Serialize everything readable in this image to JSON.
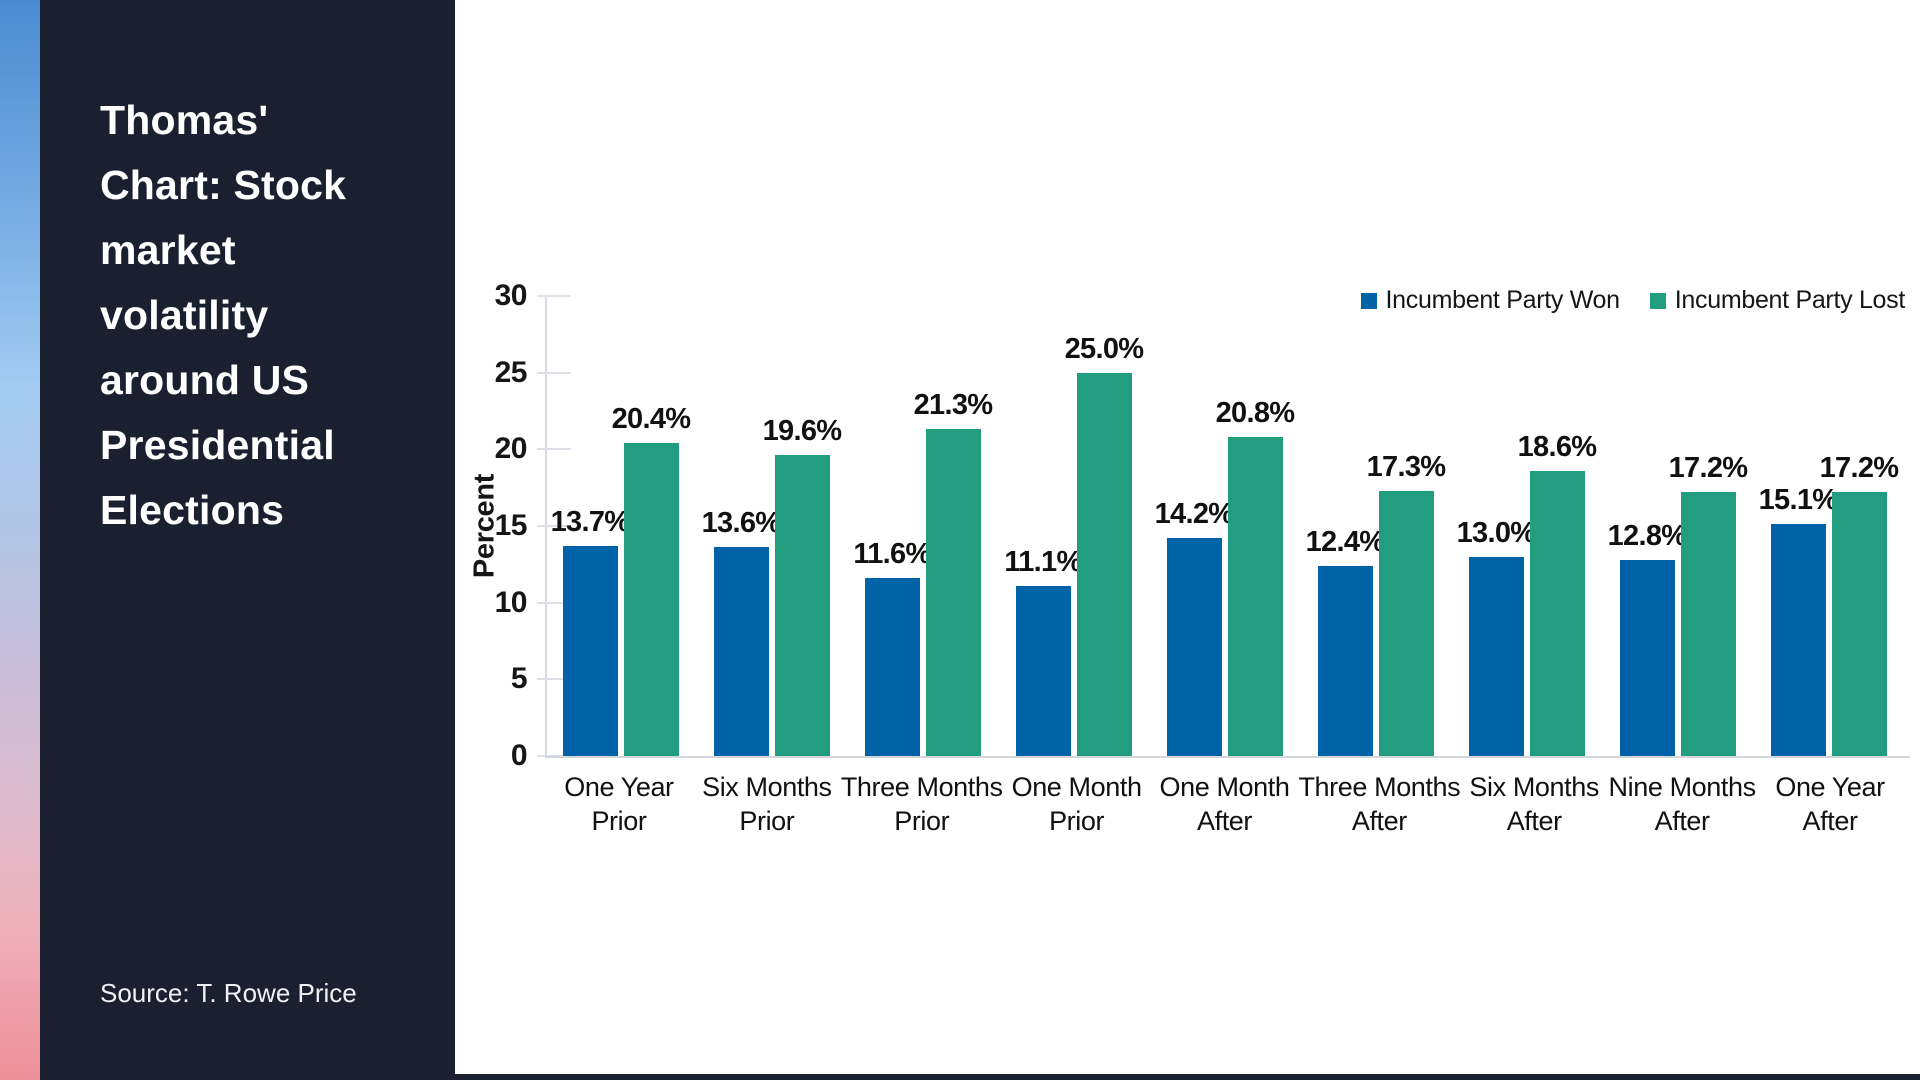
{
  "sidebar": {
    "title": "Thomas' Chart: Stock market volatility around US Presidential Elections",
    "source": "Source: T. Rowe Price"
  },
  "colors": {
    "sidebar_background": "#1a202f",
    "panel_background": "#ffffff",
    "won_blue": "#0062a7",
    "lost_green": "#229d80",
    "axis_gray": "#d6dbe1",
    "gradient_strip_top": "#4a8bd0",
    "gradient_strip_middle": "#a3cbf2",
    "gradient_strip_bottom": "#ee8f99"
  },
  "chart_data": {
    "type": "bar",
    "title": "",
    "xlabel": "",
    "ylabel": "Percent",
    "ylim": [
      0,
      30
    ],
    "yticks": [
      0,
      5,
      10,
      15,
      20,
      25,
      30
    ],
    "grid": "tick-stubs-only",
    "legend_position": "top-right",
    "value_label_format": "0.0%",
    "categories": [
      "One Year\nPrior",
      "Six Months\nPrior",
      "Three Months\nPrior",
      "One Month\nPrior",
      "One Month\nAfter",
      "Three Months\nAfter",
      "Six Months\nAfter",
      "Nine Months\nAfter",
      "One Year\nAfter"
    ],
    "series": [
      {
        "name": "Incumbent Party Won",
        "color": "#0062a7",
        "values": [
          13.7,
          13.6,
          11.6,
          11.1,
          14.2,
          12.4,
          13.0,
          12.8,
          15.1
        ]
      },
      {
        "name": "Incumbent Party Lost",
        "color": "#229d80",
        "values": [
          20.4,
          19.6,
          21.3,
          25.0,
          20.8,
          17.3,
          18.6,
          17.2,
          17.2
        ]
      }
    ]
  }
}
